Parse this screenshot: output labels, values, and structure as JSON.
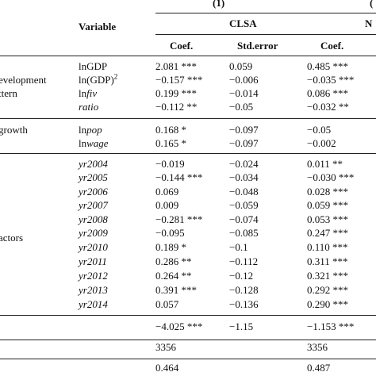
{
  "header": {
    "model_1": "(1)",
    "model_2_partial": "(",
    "variable": "Variable",
    "group_1": "CLSA",
    "group_2_partial": "N",
    "col_coef": "Coef.",
    "col_std": "Std.error",
    "col_coef_2": "Coef."
  },
  "groups": [
    {
      "line1": "evelopment",
      "line2": "ttern"
    },
    {
      "line1": "growth"
    },
    {
      "line1": "actors"
    }
  ],
  "rows": [
    {
      "var": "lnGDP",
      "coef": "2.081 ***",
      "std": "0.059",
      "coef2": "0.485 ***"
    },
    {
      "var_pre": "ln(GDP)",
      "var_sup": "2",
      "coef": "−0.157 ***",
      "std": "−0.006",
      "coef2": "−0.035 ***"
    },
    {
      "var_pre": "ln",
      "var_it": "fiv",
      "coef": "0.199 ***",
      "std": "−0.014",
      "coef2": "0.086 ***"
    },
    {
      "var_it": "ratio",
      "coef": "−0.112 **",
      "std": "−0.05",
      "coef2": "−0.032 **"
    },
    {
      "var_pre": "ln",
      "var_it": "pop",
      "coef": "0.168 *",
      "std": "−0.097",
      "coef2": "−0.05"
    },
    {
      "var_pre": "ln",
      "var_it": "wage",
      "coef": "0.165 *",
      "std": "−0.097",
      "coef2": "−0.002"
    },
    {
      "var_it": "yr2004",
      "coef": "−0.019",
      "std": "−0.024",
      "coef2": "0.011 **"
    },
    {
      "var_it": "yr2005",
      "coef": "−0.144 ***",
      "std": "−0.034",
      "coef2": "−0.030 ***"
    },
    {
      "var_it": "yr2006",
      "coef": "0.069",
      "std": "−0.048",
      "coef2": "0.028 ***"
    },
    {
      "var_it": "yr2007",
      "coef": "0.009",
      "std": "−0.059",
      "coef2": "0.059 ***"
    },
    {
      "var_it": "yr2008",
      "coef": "−0.281 ***",
      "std": "−0.074",
      "coef2": "0.053 ***"
    },
    {
      "var_it": "yr2009",
      "coef": "−0.095",
      "std": "−0.085",
      "coef2": "0.247 ***"
    },
    {
      "var_it": "yr2010",
      "coef": "0.189 *",
      "std": "−0.1",
      "coef2": "0.110 ***"
    },
    {
      "var_it": "yr2011",
      "coef": "0.286 **",
      "std": "−0.112",
      "coef2": "0.311 ***"
    },
    {
      "var_it": "yr2012",
      "coef": "0.264 **",
      "std": "−0.12",
      "coef2": "0.321 ***"
    },
    {
      "var_it": "yr2013",
      "coef": "0.391 ***",
      "std": "−0.128",
      "coef2": "0.292 ***"
    },
    {
      "var_it": "yr2014",
      "coef": "0.057",
      "std": "−0.136",
      "coef2": "0.290 ***"
    }
  ],
  "constant": {
    "coef": "−4.025 ***",
    "std": "−1.15",
    "coef2": "−1.153 ***"
  },
  "observations": {
    "coef": "3356",
    "coef2": "3356"
  },
  "r2": {
    "coef": "0.464",
    "coef2": "0.487"
  }
}
